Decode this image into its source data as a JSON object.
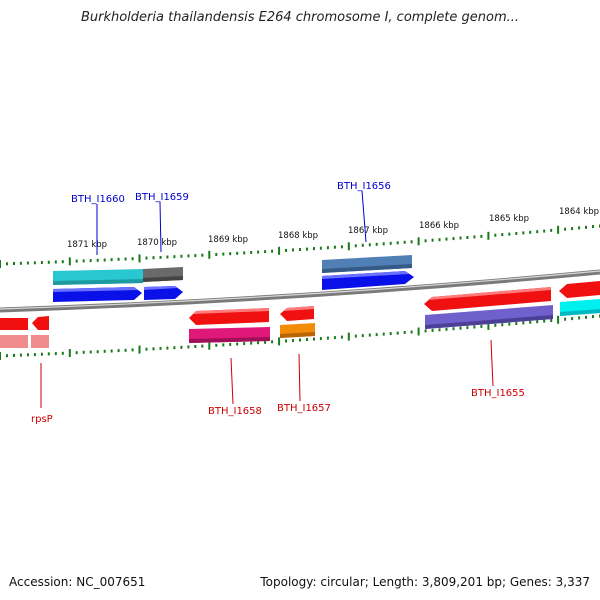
{
  "title": "Burkholderia thailandensis E264 chromosome I, complete genom...",
  "footer": {
    "accession": "Accession: NC_007651",
    "summary": "Topology: circular; Length: 3,809,201 bp; Genes: 3,337"
  },
  "ruler_labels": [
    "1871 kbp",
    "1870 kbp",
    "1869 kbp",
    "1868 kbp",
    "1867 kbp",
    "1866 kbp",
    "1865 kbp",
    "1864 kbp"
  ],
  "gene_labels": [
    "BTH_I1660",
    "BTH_I1659",
    "BTH_I1656",
    "BTH_I1658",
    "BTH_I1657",
    "BTH_I1655",
    "rpsP"
  ],
  "colors": {
    "forward_label": "#0000cc",
    "reverse_label": "#cc0000",
    "tick": "#1a7a1a",
    "backbone": "#8c8c8c",
    "cds_blue": "#0a10e8",
    "cds_red": "#f01010",
    "cyan": "#29c7cf",
    "steelblue": "#4f7fb5",
    "gray": "#6a6a6a",
    "magenta": "#e0187a",
    "orange": "#f28c0a",
    "purple": "#7060cc",
    "pink": "#f08c8c"
  }
}
